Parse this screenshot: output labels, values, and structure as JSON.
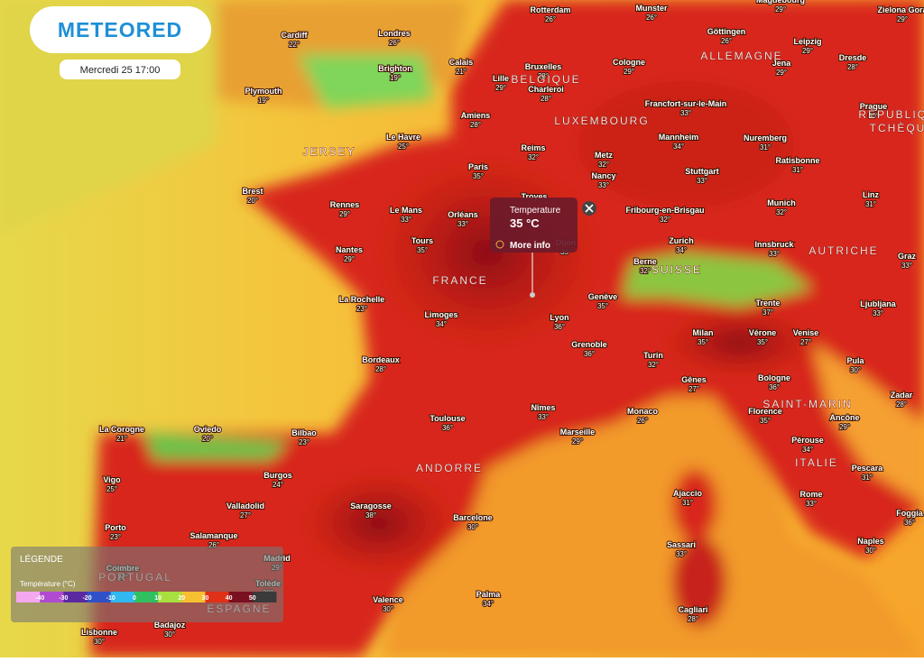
{
  "header": {
    "logo": "METEORED",
    "date": "Mercredi 25 17:00"
  },
  "cities": [
    {
      "name": "Rotterdam",
      "temp": "26°"
    },
    {
      "name": "Munster",
      "temp": "26°"
    },
    {
      "name": "Magdebourg",
      "temp": "29°"
    },
    {
      "name": "Zielona Gora",
      "temp": "29°"
    },
    {
      "name": "Cardiff",
      "temp": "22°"
    },
    {
      "name": "Londres",
      "temp": "26°"
    },
    {
      "name": "Göttingen",
      "temp": "26°"
    },
    {
      "name": "Leipzig",
      "temp": "29°"
    },
    {
      "name": "Dresde",
      "temp": "28°"
    },
    {
      "name": "Brighton",
      "temp": "19°"
    },
    {
      "name": "Calais",
      "temp": "21°"
    },
    {
      "name": "Lille",
      "temp": "29°"
    },
    {
      "name": "Bruxelles",
      "temp": "28°"
    },
    {
      "name": "Cologne",
      "temp": "29°"
    },
    {
      "name": "Jena",
      "temp": "29°"
    },
    {
      "name": "Plymouth",
      "temp": "19°"
    },
    {
      "name": "Charleroi",
      "temp": "28°"
    },
    {
      "name": "Prague",
      "temp": "30°"
    },
    {
      "name": "Amiens",
      "temp": "28°"
    },
    {
      "name": "Francfort-sur-le-Main",
      "temp": "33°"
    },
    {
      "name": "Le Havre",
      "temp": "25°"
    },
    {
      "name": "Mannheim",
      "temp": "34°"
    },
    {
      "name": "Nuremberg",
      "temp": "31°"
    },
    {
      "name": "Reims",
      "temp": "32°"
    },
    {
      "name": "Metz",
      "temp": "32°"
    },
    {
      "name": "Ratisbonne",
      "temp": "31°"
    },
    {
      "name": "Paris",
      "temp": "35°"
    },
    {
      "name": "Stuttgart",
      "temp": "33°"
    },
    {
      "name": "Brest",
      "temp": "20°"
    },
    {
      "name": "Nancy",
      "temp": "33°"
    },
    {
      "name": "Rennes",
      "temp": "29°"
    },
    {
      "name": "Le Mans",
      "temp": "33°"
    },
    {
      "name": "Orléans",
      "temp": "33°"
    },
    {
      "name": "Fribourg-en-Brisgau",
      "temp": "32°"
    },
    {
      "name": "Munich",
      "temp": "32°"
    },
    {
      "name": "Linz",
      "temp": "31°"
    },
    {
      "name": "Tours",
      "temp": "35°"
    },
    {
      "name": "Zurich",
      "temp": "34°"
    },
    {
      "name": "Innsbruck",
      "temp": "33°"
    },
    {
      "name": "Nantes",
      "temp": "29°"
    },
    {
      "name": "Dijon",
      "temp": "35°"
    },
    {
      "name": "Berne",
      "temp": "32°"
    },
    {
      "name": "Graz",
      "temp": "33°"
    },
    {
      "name": "La Rochelle",
      "temp": "23°"
    },
    {
      "name": "Genève",
      "temp": "35°"
    },
    {
      "name": "Trente",
      "temp": "37°"
    },
    {
      "name": "Ljubljana",
      "temp": "33°"
    },
    {
      "name": "Limoges",
      "temp": "34°"
    },
    {
      "name": "Lyon",
      "temp": "36°"
    },
    {
      "name": "Milan",
      "temp": "35°"
    },
    {
      "name": "Vérone",
      "temp": "35°"
    },
    {
      "name": "Venise",
      "temp": "27°"
    },
    {
      "name": "Grenoble",
      "temp": "36°"
    },
    {
      "name": "Turin",
      "temp": "32°"
    },
    {
      "name": "Bordeaux",
      "temp": "28°"
    },
    {
      "name": "Pula",
      "temp": "30°"
    },
    {
      "name": "Gênes",
      "temp": "27°"
    },
    {
      "name": "Bologne",
      "temp": "36°"
    },
    {
      "name": "Zadar",
      "temp": "28°"
    },
    {
      "name": "Nîmes",
      "temp": "33°"
    },
    {
      "name": "Monaco",
      "temp": "26°"
    },
    {
      "name": "Florence",
      "temp": "35°"
    },
    {
      "name": "Ancône",
      "temp": "29°"
    },
    {
      "name": "Toulouse",
      "temp": "36°"
    },
    {
      "name": "Marseille",
      "temp": "29°"
    },
    {
      "name": "La Corogne",
      "temp": "21°"
    },
    {
      "name": "Oviedo",
      "temp": "20°"
    },
    {
      "name": "Bilbao",
      "temp": "23°"
    },
    {
      "name": "Pérouse",
      "temp": "34°"
    },
    {
      "name": "Burgos",
      "temp": "24°"
    },
    {
      "name": "Vigo",
      "temp": "25°"
    },
    {
      "name": "Pescara",
      "temp": "31°"
    },
    {
      "name": "Ajaccio",
      "temp": "31°"
    },
    {
      "name": "Rome",
      "temp": "33°"
    },
    {
      "name": "Valladolid",
      "temp": "27°"
    },
    {
      "name": "Saragosse",
      "temp": "38°"
    },
    {
      "name": "Foggia",
      "temp": "36°"
    },
    {
      "name": "Barcelone",
      "temp": "30°"
    },
    {
      "name": "Porto",
      "temp": "23°"
    },
    {
      "name": "Salamanque",
      "temp": "26°"
    },
    {
      "name": "Naples",
      "temp": "30°"
    },
    {
      "name": "Sassari",
      "temp": "33°"
    },
    {
      "name": "Madrid",
      "temp": "29°"
    },
    {
      "name": "Coimbre",
      "temp": "27°"
    },
    {
      "name": "Tolède",
      "temp": "30°"
    },
    {
      "name": "Valence",
      "temp": "30°"
    },
    {
      "name": "Palma",
      "temp": "34°"
    },
    {
      "name": "Cagliari",
      "temp": "28°"
    },
    {
      "name": "Badajoz",
      "temp": "30°"
    },
    {
      "name": "Lisbonne",
      "temp": "30°"
    },
    {
      "name": "Troyes"
    }
  ],
  "countries": [
    "ALLEMAGNE",
    "BELGIQUE",
    "LUXEMBOURG",
    "FRANCE",
    "SUISSE",
    "AUTRICHE",
    "RÉPUBLIQUE",
    "TCHÈQUE",
    "SAINT-MARIN",
    "ITALIE",
    "ANDORRE",
    "PORTUGAL",
    "ESPAGNE",
    "JERSEY"
  ],
  "popup": {
    "title": "Temperature",
    "value": "35 °C",
    "link": "More info"
  },
  "legend": {
    "title": "LÉGENDE",
    "subtitle": "Température (°C)",
    "ticks": [
      -40,
      -30,
      -20,
      -10,
      0,
      10,
      20,
      30,
      40,
      50
    ]
  }
}
